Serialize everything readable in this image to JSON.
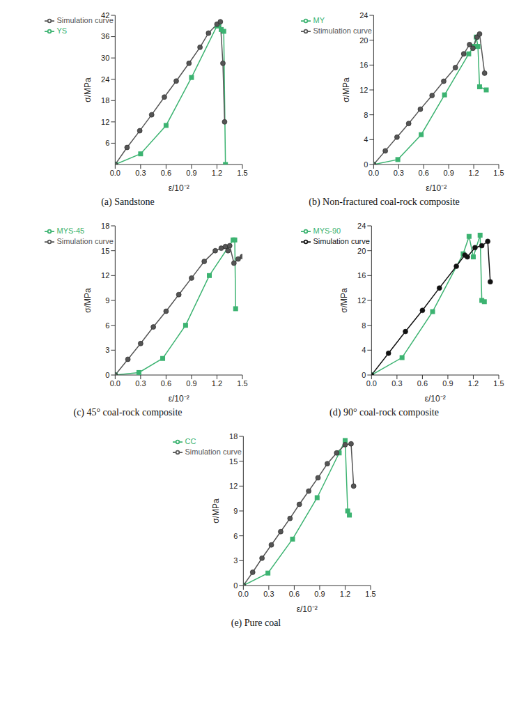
{
  "chart_data": [
    {
      "type": "line",
      "title": "(a) Sandstone",
      "x_label": "ε/10⁻²",
      "y_label": "σ/MPa",
      "grid": false,
      "legend": "upper left",
      "xlim": [
        0,
        1.5
      ],
      "xticks": [
        {
          "value": 0,
          "label": "0.0"
        },
        0.3,
        0.6,
        0.9,
        1.2,
        1.5
      ],
      "ylim": [
        0,
        42
      ],
      "yticks": [
        6,
        12,
        18,
        24,
        30,
        36,
        42
      ],
      "series": [
        {
          "name": "YS",
          "color": "#3cb371",
          "marker": "square",
          "x": [
            0,
            0.3,
            0.6,
            0.9,
            1.2,
            1.22,
            1.25,
            1.28,
            1.3
          ],
          "values": [
            0,
            3,
            11,
            24.5,
            39,
            39.5,
            38,
            37.5,
            0
          ]
        },
        {
          "name": "Simulation curve",
          "color": "#555555",
          "marker": "circle",
          "x": [
            0,
            0.14,
            0.29,
            0.43,
            0.58,
            0.72,
            0.87,
            1.0,
            1.1,
            1.2,
            1.24,
            1.27,
            1.29
          ],
          "values": [
            0,
            4.8,
            9.5,
            14,
            19,
            23.5,
            28.5,
            33,
            37,
            39.5,
            40.2,
            28.5,
            12
          ]
        }
      ]
    },
    {
      "type": "line",
      "title": "(b) Non-fractured coal-rock composite",
      "x_label": "ε/10⁻²",
      "y_label": "σ/MPa",
      "grid": false,
      "legend": "upper left",
      "xlim": [
        0,
        1.5
      ],
      "xticks": [
        {
          "value": 0,
          "label": "0.0"
        },
        0.3,
        0.6,
        0.9,
        1.2,
        1.5
      ],
      "ylim": [
        0,
        24
      ],
      "yticks": [
        0,
        4,
        8,
        12,
        16,
        20,
        24
      ],
      "series": [
        {
          "name": "MY",
          "color": "#3cb371",
          "marker": "square",
          "x": [
            0,
            0.29,
            0.57,
            0.85,
            1.14,
            1.2,
            1.23,
            1.25,
            1.27,
            1.35
          ],
          "values": [
            0,
            0.8,
            4.8,
            11.2,
            17.8,
            19,
            20.5,
            19,
            12.5,
            12
          ]
        },
        {
          "name": "Stimulation curve",
          "color": "#555555",
          "marker": "circle",
          "x": [
            0,
            0.14,
            0.28,
            0.42,
            0.56,
            0.7,
            0.84,
            0.98,
            1.08,
            1.15,
            1.19,
            1.24,
            1.27,
            1.33
          ],
          "values": [
            0,
            2.2,
            4.4,
            6.6,
            8.9,
            11.1,
            13.4,
            15.6,
            17.8,
            19.3,
            18.7,
            20.5,
            21,
            14.7
          ]
        }
      ]
    },
    {
      "type": "line",
      "title": "(c) 45° coal-rock composite",
      "x_label": "ε/10⁻²",
      "y_label": "σ/MPa",
      "grid": false,
      "legend": "upper left",
      "xlim": [
        0,
        1.5
      ],
      "xticks": [
        {
          "value": 0,
          "label": "0.0"
        },
        0.3,
        0.6,
        0.9,
        1.2,
        1.5
      ],
      "ylim": [
        0,
        18
      ],
      "yticks": [
        0,
        3,
        6,
        9,
        12,
        15,
        18
      ],
      "series": [
        {
          "name": "MYS-45",
          "color": "#3cb371",
          "marker": "square",
          "x": [
            0,
            0.28,
            0.56,
            0.83,
            1.11,
            1.39,
            1.41,
            1.42
          ],
          "values": [
            0,
            0.3,
            2,
            6,
            12,
            16.3,
            16.3,
            8
          ]
        },
        {
          "name": "Simulation curve",
          "color": "#555555",
          "marker": "circle",
          "x": [
            0,
            0.15,
            0.3,
            0.45,
            0.6,
            0.75,
            0.9,
            1.05,
            1.18,
            1.25,
            1.3,
            1.33,
            1.35,
            1.4,
            1.45,
            1.5
          ],
          "values": [
            0,
            1.9,
            3.8,
            5.8,
            7.7,
            9.7,
            11.7,
            13.7,
            15,
            15.3,
            15.5,
            15,
            15.6,
            13.5,
            14,
            14.3
          ]
        }
      ]
    },
    {
      "type": "line",
      "title": "(d) 90° coal-rock composite",
      "x_label": "ε/10⁻²",
      "y_label": "σ/MPa",
      "grid": false,
      "legend": "upper left",
      "xlim": [
        0,
        1.5
      ],
      "xticks": [
        {
          "value": 0,
          "label": "0.0"
        },
        0.3,
        0.6,
        0.9,
        1.2,
        1.5
      ],
      "ylim": [
        0,
        24
      ],
      "yticks": [
        0,
        4,
        8,
        12,
        16,
        20,
        24
      ],
      "series": [
        {
          "name": "MYS-90",
          "color": "#3cb371",
          "marker": "square",
          "x": [
            0,
            0.36,
            0.72,
            1.08,
            1.15,
            1.2,
            1.28,
            1.3,
            1.33
          ],
          "values": [
            0,
            2.8,
            10.2,
            19.5,
            22.3,
            19,
            22.5,
            12,
            11.8
          ]
        },
        {
          "name": "Simulation curve",
          "color": "#111111",
          "marker": "circle",
          "x": [
            0,
            0.2,
            0.4,
            0.6,
            0.8,
            1.0,
            1.1,
            1.13,
            1.22,
            1.3,
            1.37,
            1.4
          ],
          "values": [
            0,
            3.5,
            7,
            10.4,
            14,
            17.5,
            19.3,
            19,
            20.5,
            20.8,
            21.5,
            15
          ]
        }
      ]
    },
    {
      "type": "line",
      "title": "(e) Pure coal",
      "x_label": "ε/10⁻²",
      "y_label": "σ/MPa",
      "grid": false,
      "legend": "upper left",
      "xlim": [
        0,
        1.5
      ],
      "xticks": [
        {
          "value": 0,
          "label": "0.0"
        },
        0.3,
        0.6,
        0.9,
        1.2,
        1.5
      ],
      "ylim": [
        0,
        18
      ],
      "yticks": [
        0,
        3,
        6,
        9,
        12,
        15,
        18
      ],
      "series": [
        {
          "name": "CC",
          "color": "#3cb371",
          "marker": "square",
          "x": [
            0,
            0.29,
            0.58,
            0.87,
            1.13,
            1.2,
            1.23,
            1.25
          ],
          "values": [
            0,
            1.5,
            5.6,
            10.6,
            16,
            17.5,
            9,
            8.5
          ]
        },
        {
          "name": "Simulation curve",
          "color": "#555555",
          "marker": "circle",
          "x": [
            0,
            0.11,
            0.22,
            0.33,
            0.44,
            0.55,
            0.66,
            0.77,
            0.88,
            0.99,
            1.1,
            1.2,
            1.27,
            1.3
          ],
          "values": [
            0,
            1.6,
            3.3,
            4.9,
            6.5,
            8.1,
            9.8,
            11.4,
            13,
            14.7,
            16,
            17,
            17.1,
            12
          ]
        }
      ]
    }
  ]
}
